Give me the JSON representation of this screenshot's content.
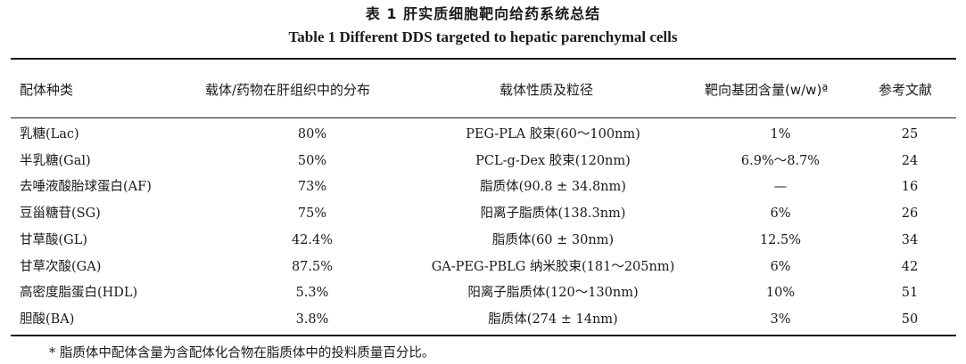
{
  "title_cn": "表 1   肝实质细胞靶向给药系统总结",
  "title_en": "Table 1    Different DDS targeted to hepatic parenchymal cells",
  "columns": [
    "配体种类",
    "载体/药物在肝组织中的分布",
    "载体性质及粒径",
    "靶向基团含量(w/w)ª",
    "参考文献"
  ],
  "rows": [
    [
      "乳糖(Lac)",
      "80%",
      "PEG-PLA 胶束(60～100nm)",
      "1%",
      "25"
    ],
    [
      "半乳糖(Gal)",
      "50%",
      "PCL-g-Dex 胶束(120nm)",
      "6.9%～8.7%",
      "24"
    ],
    [
      "去唾液酸胎球蛋白(AF)",
      "73%",
      "脂质体(90.8 ± 34.8nm)",
      "—",
      "16"
    ],
    [
      "豆甾糖苷(SG)",
      "75%",
      "阳离子脂质体(138.3nm)",
      "6%",
      "26"
    ],
    [
      "甘草酸(GL)",
      "42.4%",
      "脂质体(60 ± 30nm)",
      "12.5%",
      "34"
    ],
    [
      "甘草次酸(GA)",
      "87.5%",
      "GA-PEG-PBLG 纳米胶束(181～205nm)",
      "6%",
      "42"
    ],
    [
      "高密度脂蛋白(HDL)",
      "5.3%",
      "阳离子脂质体(120～130nm)",
      "10%",
      "51"
    ],
    [
      "胆酸(BA)",
      "3.8%",
      "脂质体(274 ± 14nm)",
      "3%",
      "50"
    ]
  ],
  "footnote": "* 脂质体中配体含量为含配体化合物在脂质体中的投料质量百分比。"
}
